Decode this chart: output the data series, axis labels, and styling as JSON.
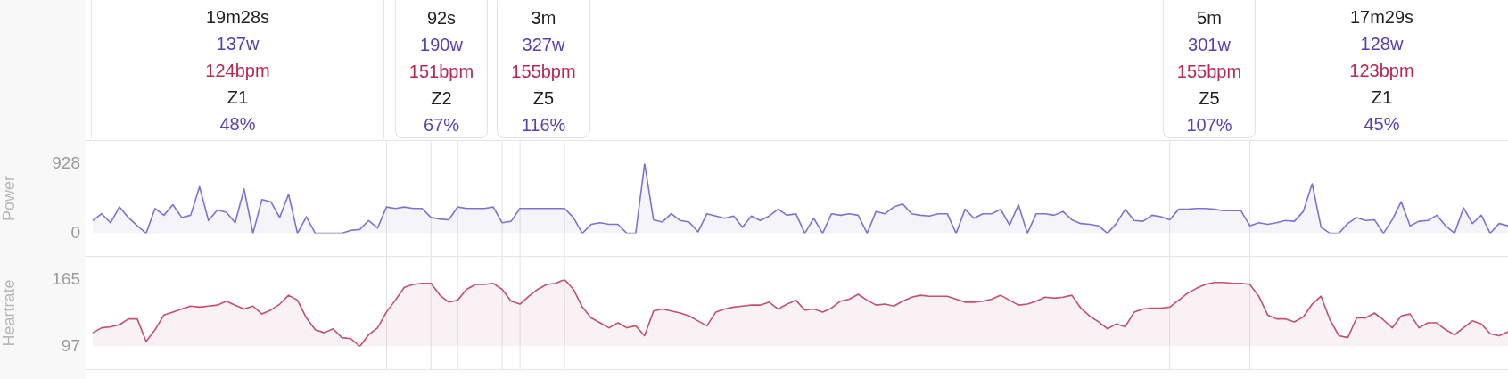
{
  "chart_data": [
    {
      "type": "other",
      "annotations": [
        "19m28s",
        "137w",
        "124bpm",
        "Z1",
        "48%",
        "92s",
        "190w",
        "151bpm",
        "Z2",
        "67%",
        "3m",
        "327w",
        "155bpm",
        "Z5",
        "116%",
        "5m",
        "301w",
        "155bpm",
        "Z5",
        "107%",
        "17m29s",
        "128w",
        "123bpm",
        "Z1",
        "45%"
      ]
    },
    {
      "type": "area",
      "ylabel": "Power",
      "tick_labels": "y",
      "grid": false,
      "categories": [
        null,
        null,
        null,
        null,
        null,
        null,
        null,
        null,
        null,
        null,
        null,
        null,
        null,
        null,
        null,
        null,
        null,
        null,
        null,
        null,
        null,
        null,
        null,
        null,
        null,
        null,
        null,
        null,
        null,
        null,
        null,
        null,
        null,
        null,
        null,
        null,
        null,
        null,
        null,
        null,
        null,
        null,
        null,
        null,
        null,
        null,
        null,
        null,
        null,
        null,
        null,
        null,
        null,
        null,
        null,
        null,
        null,
        null,
        null,
        null,
        null,
        null,
        null,
        null,
        null,
        null,
        null,
        null,
        null,
        null,
        null,
        null,
        null,
        null,
        null,
        null,
        null,
        null,
        null,
        null,
        null,
        null,
        null,
        null,
        null,
        null,
        null,
        null,
        null,
        null,
        null,
        null,
        null,
        null,
        null,
        null,
        null,
        null,
        null,
        null,
        null,
        null,
        null,
        null,
        null,
        null,
        null,
        null,
        null,
        null,
        null,
        null,
        null,
        null,
        null,
        null,
        null,
        null,
        null,
        null,
        null,
        null,
        null,
        null,
        null,
        null,
        null,
        null,
        null,
        null,
        null,
        null,
        null,
        null,
        null,
        null,
        null,
        null,
        null,
        null,
        null,
        null,
        null,
        null,
        null,
        null,
        null,
        null,
        null,
        null,
        null,
        null,
        null,
        null,
        null,
        null,
        null,
        null,
        null,
        null
      ],
      "ylim": [
        0,
        928
      ],
      "yticks": [
        0,
        928
      ],
      "series": [
        {
          "color": "#8270cf",
          "values": [
            170,
            260,
            140,
            350,
            210,
            100,
            0,
            330,
            240,
            380,
            210,
            240,
            620,
            170,
            310,
            280,
            140,
            590,
            0,
            450,
            420,
            210,
            520,
            0,
            220,
            0,
            0,
            0,
            0,
            40,
            50,
            170,
            70,
            350,
            330,
            350,
            330,
            330,
            210,
            190,
            180,
            350,
            330,
            330,
            330,
            350,
            140,
            160,
            330,
            330,
            330,
            330,
            330,
            330,
            210,
            0,
            120,
            140,
            120,
            120,
            0,
            0,
            928,
            180,
            150,
            260,
            170,
            150,
            20,
            260,
            230,
            200,
            230,
            80,
            230,
            170,
            230,
            320,
            240,
            260,
            0,
            200,
            0,
            260,
            240,
            260,
            240,
            0,
            290,
            260,
            350,
            390,
            260,
            240,
            230,
            260,
            260,
            0,
            320,
            200,
            260,
            260,
            320,
            110,
            380,
            0,
            260,
            260,
            240,
            290,
            180,
            130,
            120,
            100,
            0,
            130,
            320,
            170,
            160,
            240,
            220,
            180,
            320,
            320,
            330,
            330,
            320,
            300,
            300,
            300,
            100,
            140,
            120,
            140,
            170,
            160,
            290,
            660,
            80,
            0,
            0,
            130,
            210,
            170,
            180,
            0,
            180,
            420,
            100,
            160,
            170,
            240,
            100,
            0,
            340,
            130,
            240,
            0,
            130,
            100
          ]
        }
      ]
    },
    {
      "type": "area",
      "ylabel": "Heartrate",
      "tick_labels": "y",
      "grid": false,
      "categories": [
        null,
        null,
        null,
        null,
        null,
        null,
        null,
        null,
        null,
        null,
        null,
        null,
        null,
        null,
        null,
        null,
        null,
        null,
        null,
        null,
        null,
        null,
        null,
        null,
        null,
        null,
        null,
        null,
        null,
        null,
        null,
        null,
        null,
        null,
        null,
        null,
        null,
        null,
        null,
        null,
        null,
        null,
        null,
        null,
        null,
        null,
        null,
        null,
        null,
        null,
        null,
        null,
        null,
        null,
        null,
        null,
        null,
        null,
        null,
        null,
        null,
        null,
        null,
        null,
        null,
        null,
        null,
        null,
        null,
        null,
        null,
        null,
        null,
        null,
        null,
        null,
        null,
        null,
        null,
        null,
        null,
        null,
        null,
        null,
        null,
        null,
        null,
        null,
        null,
        null,
        null,
        null,
        null,
        null,
        null,
        null,
        null,
        null,
        null,
        null,
        null,
        null,
        null,
        null,
        null,
        null,
        null,
        null,
        null,
        null,
        null,
        null,
        null,
        null,
        null,
        null,
        null,
        null,
        null,
        null,
        null,
        null,
        null,
        null,
        null,
        null,
        null,
        null,
        null,
        null,
        null,
        null,
        null,
        null,
        null,
        null,
        null,
        null,
        null,
        null,
        null,
        null,
        null,
        null,
        null,
        null,
        null,
        null,
        null,
        null,
        null,
        null,
        null,
        null,
        null,
        null,
        null,
        null,
        null,
        null
      ],
      "ylim": [
        97,
        165
      ],
      "yticks": [
        97,
        165
      ],
      "series": [
        {
          "color": "#c2506f",
          "values": [
            111,
            116,
            117,
            119,
            125,
            125,
            102,
            114,
            129,
            132,
            135,
            138,
            137,
            138,
            139,
            143,
            139,
            135,
            138,
            130,
            134,
            140,
            149,
            144,
            126,
            114,
            111,
            115,
            106,
            105,
            97,
            109,
            116,
            132,
            144,
            157,
            160,
            161,
            161,
            149,
            142,
            144,
            155,
            160,
            160,
            161,
            155,
            143,
            140,
            148,
            155,
            160,
            161,
            165,
            155,
            137,
            126,
            121,
            116,
            121,
            116,
            118,
            108,
            133,
            135,
            133,
            131,
            128,
            123,
            118,
            132,
            135,
            137,
            138,
            139,
            139,
            142,
            135,
            140,
            144,
            134,
            135,
            132,
            136,
            143,
            145,
            150,
            144,
            139,
            140,
            138,
            143,
            147,
            149,
            148,
            148,
            148,
            145,
            142,
            142,
            143,
            145,
            149,
            144,
            139,
            140,
            143,
            147,
            146,
            147,
            149,
            136,
            128,
            122,
            115,
            120,
            117,
            132,
            135,
            136,
            136,
            137,
            144,
            151,
            156,
            160,
            162,
            162,
            161,
            161,
            160,
            148,
            129,
            125,
            125,
            122,
            127,
            140,
            148,
            124,
            108,
            106,
            126,
            126,
            131,
            124,
            116,
            128,
            130,
            116,
            121,
            121,
            114,
            109,
            116,
            123,
            120,
            110,
            108,
            112
          ]
        }
      ]
    }
  ]
}
